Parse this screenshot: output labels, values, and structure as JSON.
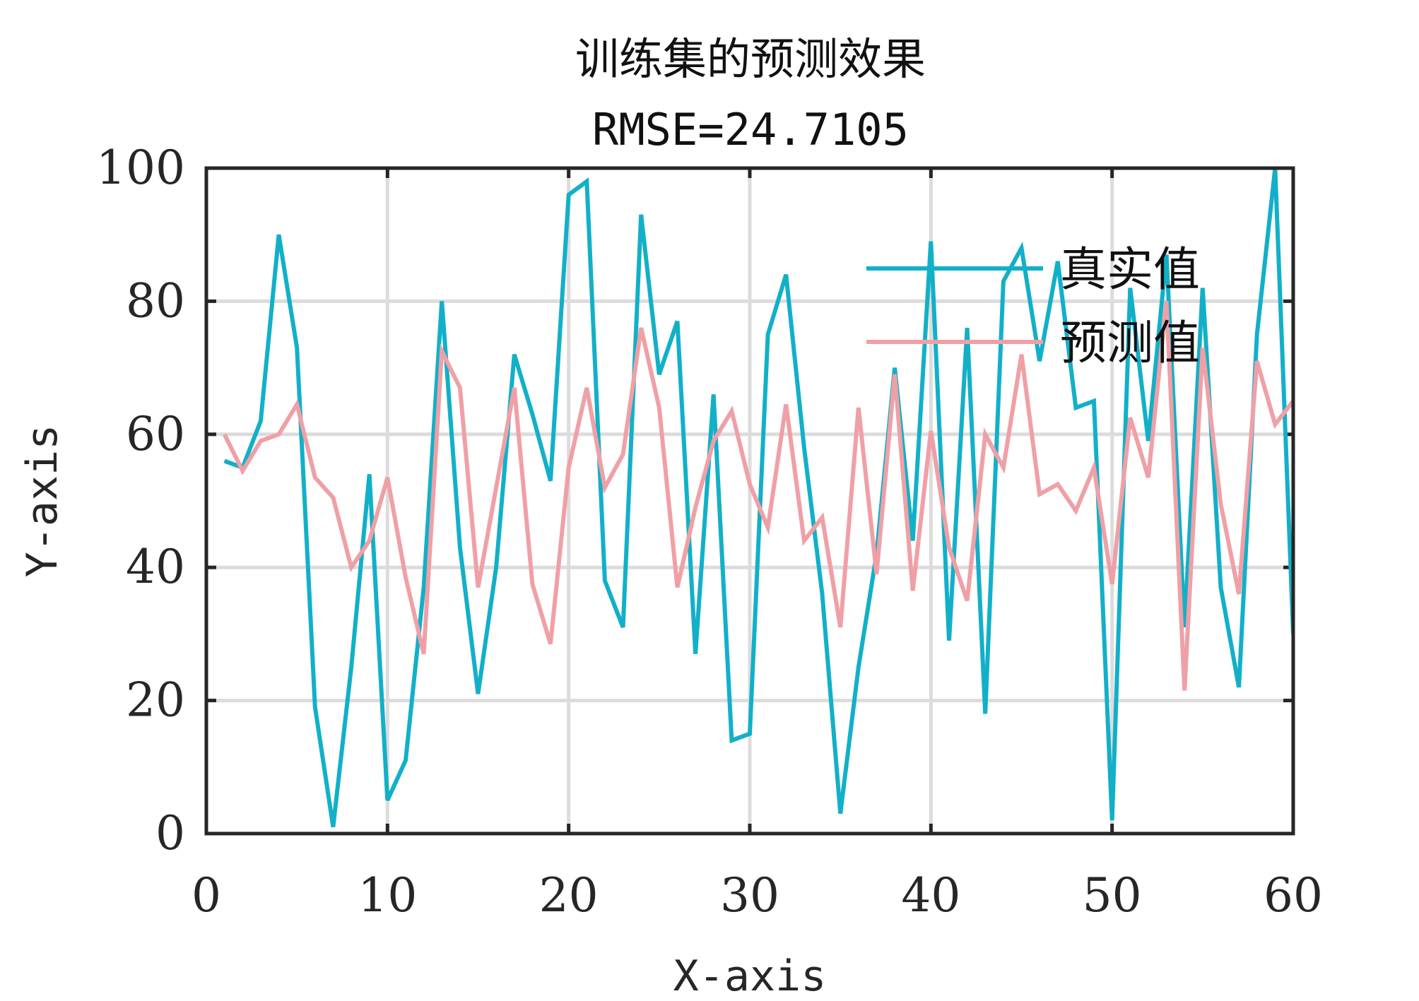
{
  "chart_data": {
    "type": "line",
    "title": "训练集的预测效果",
    "subtitle": "RMSE=24.7105",
    "xlabel": "X-axis",
    "ylabel": "Y-axis",
    "xlim": [
      0,
      60
    ],
    "ylim": [
      0,
      100
    ],
    "xticks": [
      0,
      10,
      20,
      30,
      40,
      50,
      60
    ],
    "yticks": [
      0,
      20,
      40,
      60,
      80,
      100
    ],
    "grid": true,
    "legend_position": "top-right",
    "x": [
      1,
      2,
      3,
      4,
      5,
      6,
      7,
      8,
      9,
      10,
      11,
      12,
      13,
      14,
      15,
      16,
      17,
      18,
      19,
      20,
      21,
      22,
      23,
      24,
      25,
      26,
      27,
      28,
      29,
      30,
      31,
      32,
      33,
      34,
      35,
      36,
      37,
      38,
      39,
      40,
      41,
      42,
      43,
      44,
      45,
      46,
      47,
      48,
      49,
      50,
      51,
      52,
      53,
      54,
      55,
      56,
      57,
      58,
      59,
      60
    ],
    "series": [
      {
        "name": "真实值",
        "color": "#12B0C8",
        "values": [
          56,
          55,
          62,
          90,
          73,
          19,
          1,
          25,
          54,
          5,
          11,
          37,
          80,
          43,
          21,
          40,
          72,
          63,
          53,
          96,
          98,
          38,
          31,
          93,
          69,
          77,
          27,
          66,
          14,
          15,
          75,
          84,
          58,
          36,
          3,
          25,
          42,
          70,
          44,
          89,
          29,
          76,
          18,
          83,
          88,
          71,
          86,
          64,
          65,
          2,
          82,
          59,
          87,
          31,
          82,
          37,
          22,
          75,
          100,
          30
        ]
      },
      {
        "name": "预测值",
        "color": "#EFA0A6",
        "values": [
          60,
          54.5,
          59,
          60,
          64.5,
          53.5,
          50.5,
          40,
          44,
          53.5,
          38.5,
          27,
          72.5,
          67,
          37,
          52,
          67,
          37.5,
          28.5,
          55,
          67,
          52,
          57,
          76,
          64,
          37,
          49,
          59,
          63.5,
          52.5,
          46,
          64.5,
          44,
          47.5,
          31,
          64,
          39,
          69,
          36.5,
          60.5,
          43,
          35,
          60,
          55,
          72,
          51,
          52.5,
          48.5,
          55,
          37.5,
          62.5,
          53.5,
          80,
          21.5,
          73,
          49.5,
          36,
          71,
          61.5,
          65
        ]
      }
    ]
  }
}
